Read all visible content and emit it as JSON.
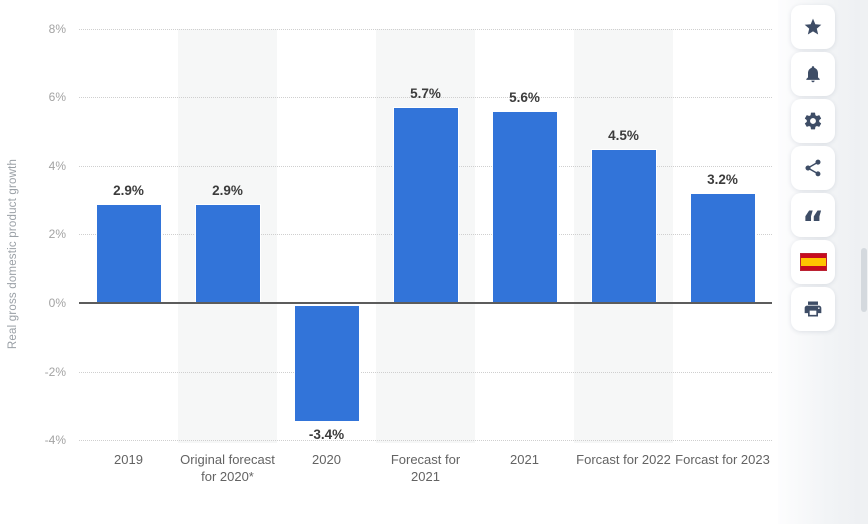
{
  "chart_data": {
    "type": "bar",
    "title": "",
    "xlabel": "",
    "ylabel": "Real gross domestic product growth",
    "categories": [
      "2019",
      "Original forecast\nfor 2020*",
      "2020",
      "Forecast for\n2021",
      "2021",
      "Forcast for 2022",
      "Forcast for 2023"
    ],
    "values": [
      2.9,
      2.9,
      -3.4,
      5.7,
      5.6,
      4.5,
      3.2
    ],
    "value_labels": [
      "2.9%",
      "2.9%",
      "-3.4%",
      "5.7%",
      "5.6%",
      "4.5%",
      "3.2%"
    ],
    "yticks": [
      8,
      6,
      4,
      2,
      0,
      -2,
      -4
    ],
    "ytick_labels": [
      "8%",
      "6%",
      "4%",
      "2%",
      "0%",
      "-2%",
      "-4%"
    ],
    "ylim": [
      -4,
      8
    ],
    "grid": "horizontal-dotted",
    "legend": "none",
    "bar_color": "#3274d9",
    "band_color": "#f6f7f7",
    "shaded_columns": [
      1,
      3,
      5
    ]
  },
  "toolbar": {
    "buttons": [
      {
        "id": "favorite",
        "icon": "star-icon"
      },
      {
        "id": "notifications",
        "icon": "bell-icon"
      },
      {
        "id": "settings",
        "icon": "gear-icon"
      },
      {
        "id": "share",
        "icon": "share-icon"
      },
      {
        "id": "citation",
        "icon": "quote-icon"
      },
      {
        "id": "language-spanish",
        "icon": "flag-spain-icon"
      },
      {
        "id": "print",
        "icon": "printer-icon"
      }
    ]
  }
}
